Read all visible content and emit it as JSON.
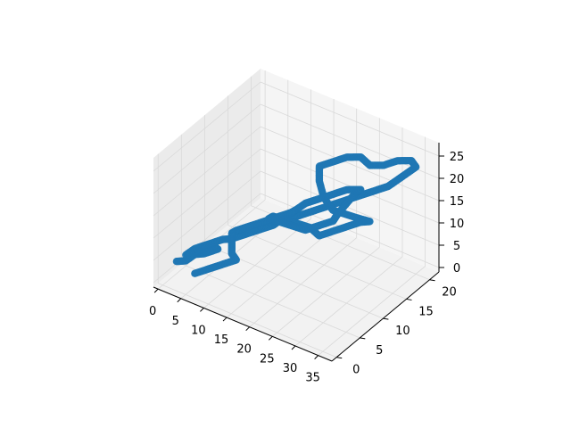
{
  "chart_data": {
    "type": "scatter3d",
    "title": "",
    "xlabel": "",
    "ylabel": "",
    "zlabel": "",
    "xlim": [
      -1,
      38
    ],
    "ylim": [
      -1,
      22
    ],
    "zlim": [
      -1,
      28
    ],
    "xticks": [
      0,
      5,
      10,
      15,
      20,
      25,
      30,
      35
    ],
    "yticks": [
      0,
      5,
      10,
      15,
      20
    ],
    "zticks": [
      0,
      5,
      10,
      15,
      20,
      25
    ],
    "grid": true,
    "marker_color": "#1f77b4",
    "pane_color": "#f2f2f2",
    "grid_color": "#d9d9d9",
    "series": [
      {
        "path": [
          [
            1,
            2,
            3
          ],
          [
            3,
            2,
            4
          ],
          [
            4,
            3,
            5
          ],
          [
            6,
            3,
            6
          ],
          [
            8,
            4,
            7
          ],
          [
            6,
            5,
            6
          ],
          [
            4,
            4,
            5
          ],
          [
            2,
            3,
            4
          ],
          [
            3,
            4,
            5
          ],
          [
            5,
            5,
            6
          ],
          [
            7,
            6,
            7
          ],
          [
            9,
            6,
            8
          ],
          [
            11,
            7,
            9
          ],
          [
            13,
            8,
            10
          ],
          [
            15,
            9,
            11
          ],
          [
            16,
            10,
            12
          ],
          [
            18,
            10,
            13
          ],
          [
            20,
            11,
            14
          ],
          [
            22,
            12,
            15
          ],
          [
            24,
            13,
            16
          ],
          [
            26,
            14,
            17
          ],
          [
            28,
            15,
            18
          ],
          [
            30,
            16,
            19
          ],
          [
            32,
            17,
            20
          ],
          [
            33,
            18,
            21
          ],
          [
            34,
            19,
            22
          ],
          [
            35,
            20,
            23
          ],
          [
            34,
            20,
            24
          ],
          [
            32,
            19,
            24
          ],
          [
            30,
            18,
            23
          ],
          [
            28,
            17,
            23
          ],
          [
            26,
            17,
            24
          ],
          [
            24,
            16,
            24
          ],
          [
            22,
            15,
            23
          ],
          [
            20,
            14,
            22
          ],
          [
            21,
            13,
            20
          ],
          [
            23,
            12,
            18
          ],
          [
            25,
            12,
            16
          ],
          [
            27,
            13,
            15
          ],
          [
            29,
            14,
            14
          ],
          [
            30,
            15,
            13
          ],
          [
            28,
            15,
            12
          ],
          [
            26,
            14,
            11
          ],
          [
            24,
            13,
            10
          ],
          [
            22,
            12,
            9
          ],
          [
            20,
            12,
            10
          ],
          [
            18,
            11,
            11
          ],
          [
            17,
            10,
            12
          ],
          [
            15,
            9,
            13
          ],
          [
            14,
            9,
            12
          ],
          [
            15,
            10,
            11
          ],
          [
            17,
            11,
            10
          ],
          [
            19,
            12,
            9
          ],
          [
            21,
            13,
            10
          ],
          [
            23,
            14,
            11
          ],
          [
            24,
            14,
            13
          ],
          [
            25,
            15,
            15
          ],
          [
            26,
            16,
            17
          ],
          [
            27,
            16,
            18
          ],
          [
            25,
            15,
            18
          ],
          [
            23,
            14,
            17
          ],
          [
            21,
            13,
            16
          ],
          [
            19,
            12,
            15
          ],
          [
            18,
            11,
            14
          ],
          [
            17,
            11,
            13
          ],
          [
            15,
            10,
            12
          ],
          [
            13,
            9,
            11
          ],
          [
            11,
            8,
            10
          ],
          [
            9,
            7,
            9
          ],
          [
            8,
            7,
            8
          ],
          [
            9,
            6,
            7
          ],
          [
            10,
            5,
            6
          ],
          [
            11,
            5,
            5
          ],
          [
            9,
            4,
            4
          ],
          [
            7,
            3,
            3
          ],
          [
            5,
            2,
            2
          ]
        ]
      }
    ]
  }
}
